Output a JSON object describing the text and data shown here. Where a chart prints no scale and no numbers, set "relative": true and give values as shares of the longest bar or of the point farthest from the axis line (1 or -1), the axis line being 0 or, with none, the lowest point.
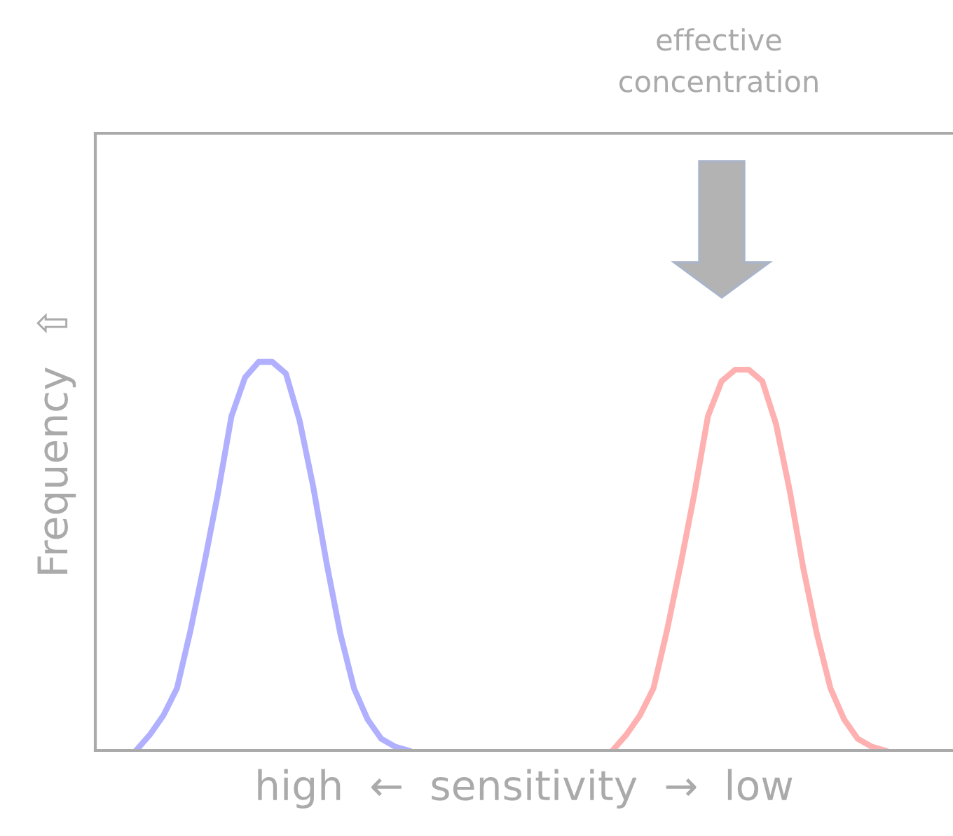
{
  "chart_data": {
    "type": "line",
    "relative": true,
    "xlabel": "high  ←  sensitivity  →  low",
    "ylabel": "Frequency  ⇧",
    "annotations": [
      "effective\nconcentration"
    ],
    "categories": [
      null,
      null,
      null,
      null,
      null,
      null,
      null,
      null,
      null,
      null,
      null,
      null,
      null,
      null,
      null,
      null,
      null,
      null,
      null,
      null,
      null,
      null,
      null,
      null,
      null,
      null,
      null,
      null,
      null,
      null,
      null,
      null,
      null,
      null,
      null,
      null,
      null,
      null,
      null,
      null,
      null,
      null,
      null,
      null,
      null,
      null,
      null,
      null,
      null,
      null,
      null,
      null,
      null,
      null,
      null,
      null,
      null,
      null,
      null,
      null,
      null,
      null,
      null,
      null
    ],
    "series": [
      {
        "color": "#b0b0ff",
        "values": [
          null,
          null,
          null,
          0,
          0.04,
          0.09,
          0.16,
          0.31,
          0.48,
          0.66,
          0.86,
          0.96,
          1,
          1,
          0.97,
          0.85,
          0.68,
          0.48,
          0.3,
          0.16,
          0.08,
          0.03,
          0.01,
          0,
          null,
          null,
          null,
          null,
          null,
          null,
          null,
          null,
          null,
          null,
          null,
          null,
          null,
          null,
          null,
          null,
          null,
          null,
          null,
          null,
          null,
          null,
          null,
          null,
          null,
          null,
          null,
          null,
          null,
          null,
          null,
          null,
          null,
          null,
          null,
          null,
          null,
          null,
          null,
          null
        ]
      },
      {
        "color": "#ffb0b0",
        "values": [
          null,
          null,
          null,
          null,
          null,
          null,
          null,
          null,
          null,
          null,
          null,
          null,
          null,
          null,
          null,
          null,
          null,
          null,
          null,
          null,
          null,
          null,
          null,
          null,
          null,
          null,
          null,
          null,
          null,
          null,
          null,
          null,
          null,
          null,
          null,
          null,
          null,
          null,
          0,
          0.04,
          0.09,
          0.16,
          0.31,
          0.48,
          0.66,
          0.86,
          0.95,
          0.98,
          0.98,
          0.95,
          0.84,
          0.67,
          0.47,
          0.3,
          0.16,
          0.08,
          0.03,
          0.01,
          0,
          null,
          null,
          null,
          null,
          null
        ]
      }
    ],
    "grid": false,
    "legend": false,
    "marker": "none",
    "line_style": "solid"
  }
}
